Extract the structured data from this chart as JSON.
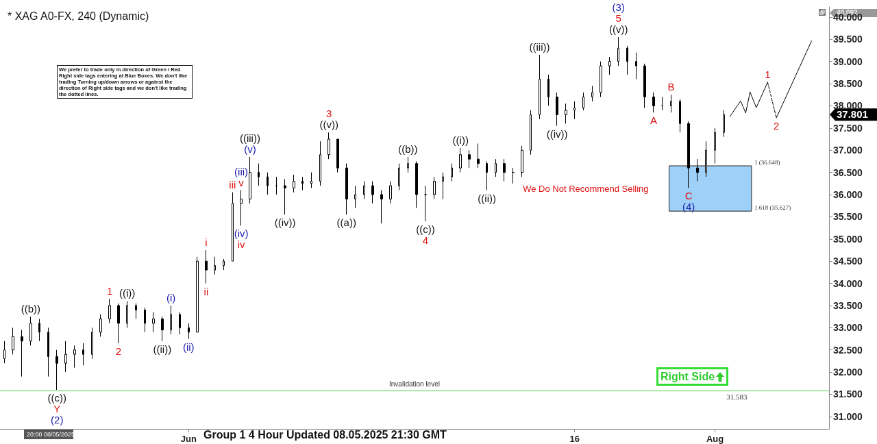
{
  "chart_data": {
    "type": "candlestick",
    "title": "* XAG A0-FX, 240 (Dynamic)",
    "color": "#000000",
    "x": [
      "2025-05-12",
      "2025-05-13",
      "2025-05-14",
      "2025-05-15",
      "2025-05-16",
      "2025-05-17",
      "2025-05-18",
      "2025-05-19",
      "2025-05-20",
      "2025-05-21",
      "2025-05-22",
      "2025-05-23",
      "2025-05-24",
      "2025-05-25",
      "2025-05-26",
      "2025-05-27",
      "2025-05-28",
      "2025-05-29",
      "2025-05-30",
      "2025-05-31",
      "2025-06-01",
      "2025-06-02",
      "2025-06-03",
      "2025-06-04",
      "2025-06-05",
      "2025-06-06",
      "2025-06-07",
      "2025-06-08",
      "2025-06-09",
      "2025-06-10",
      "2025-06-11",
      "2025-06-12",
      "2025-06-13",
      "2025-06-14",
      "2025-06-15",
      "2025-06-16",
      "2025-06-17",
      "2025-06-18",
      "2025-06-19",
      "2025-06-20",
      "2025-06-21",
      "2025-06-22",
      "2025-06-23",
      "2025-06-24",
      "2025-06-25",
      "2025-06-26",
      "2025-06-27",
      "2025-06-28",
      "2025-06-29",
      "2025-06-30",
      "2025-07-01",
      "2025-07-02",
      "2025-07-03",
      "2025-07-04",
      "2025-07-05",
      "2025-07-06",
      "2025-07-07",
      "2025-07-08",
      "2025-07-09",
      "2025-07-10",
      "2025-07-11",
      "2025-07-12",
      "2025-07-13",
      "2025-07-14",
      "2025-07-15",
      "2025-07-16",
      "2025-07-17",
      "2025-07-18",
      "2025-07-19",
      "2025-07-20",
      "2025-07-21",
      "2025-07-22",
      "2025-07-23",
      "2025-07-24",
      "2025-07-25",
      "2025-07-26",
      "2025-07-27",
      "2025-07-28",
      "2025-07-29",
      "2025-07-30",
      "2025-07-31",
      "2025-08-01",
      "2025-08-02"
    ],
    "ohlc": [
      [
        32.3,
        32.7,
        32.2,
        32.5
      ],
      [
        32.5,
        33.0,
        32.4,
        32.8
      ],
      [
        32.8,
        32.95,
        31.9,
        32.7
      ],
      [
        32.7,
        33.25,
        32.6,
        33.1
      ],
      [
        33.1,
        33.2,
        32.7,
        32.9
      ],
      [
        32.9,
        33.0,
        31.9,
        32.35
      ],
      [
        32.35,
        32.5,
        31.6,
        32.2
      ],
      [
        32.2,
        32.7,
        32.0,
        32.4
      ],
      [
        32.4,
        32.6,
        32.1,
        32.5
      ],
      [
        32.5,
        32.65,
        32.15,
        32.4
      ],
      [
        32.4,
        33.0,
        32.3,
        32.9
      ],
      [
        32.9,
        33.3,
        32.8,
        33.2
      ],
      [
        33.2,
        33.65,
        33.1,
        33.5
      ],
      [
        33.5,
        33.55,
        32.65,
        33.1
      ],
      [
        33.1,
        33.6,
        33.0,
        33.5
      ],
      [
        33.5,
        33.55,
        33.2,
        33.4
      ],
      [
        33.4,
        33.45,
        32.9,
        33.1
      ],
      [
        33.1,
        33.35,
        32.9,
        33.2
      ],
      [
        33.2,
        33.25,
        32.7,
        32.95
      ],
      [
        32.95,
        33.5,
        32.85,
        33.3
      ],
      [
        33.3,
        33.35,
        32.85,
        33.0
      ],
      [
        33.0,
        33.1,
        32.75,
        32.9
      ],
      [
        32.9,
        34.6,
        32.9,
        34.5
      ],
      [
        34.5,
        34.75,
        34.0,
        34.3
      ],
      [
        34.3,
        34.6,
        34.2,
        34.4
      ],
      [
        34.4,
        34.55,
        34.3,
        34.5
      ],
      [
        34.5,
        36.05,
        34.5,
        35.8
      ],
      [
        35.8,
        36.1,
        35.3,
        35.9
      ],
      [
        35.9,
        36.85,
        35.8,
        36.5
      ],
      [
        36.5,
        36.7,
        36.2,
        36.4
      ],
      [
        36.4,
        36.5,
        36.0,
        36.2
      ],
      [
        36.2,
        36.4,
        36.0,
        36.2
      ],
      [
        36.2,
        36.35,
        35.55,
        36.15
      ],
      [
        36.15,
        36.45,
        36.05,
        36.3
      ],
      [
        36.3,
        36.4,
        36.1,
        36.25
      ],
      [
        36.25,
        36.5,
        36.15,
        36.3
      ],
      [
        36.3,
        37.2,
        36.2,
        36.9
      ],
      [
        36.9,
        37.4,
        36.8,
        37.25
      ],
      [
        37.25,
        37.25,
        36.5,
        36.6
      ],
      [
        36.6,
        36.7,
        35.55,
        35.9
      ],
      [
        35.9,
        36.2,
        35.7,
        36.0
      ],
      [
        36.0,
        36.3,
        35.9,
        36.2
      ],
      [
        36.2,
        36.3,
        35.8,
        36.0
      ],
      [
        36.0,
        36.1,
        35.35,
        35.9
      ],
      [
        35.9,
        36.3,
        35.8,
        36.2
      ],
      [
        36.2,
        36.7,
        36.1,
        36.6
      ],
      [
        36.6,
        36.85,
        36.5,
        36.7
      ],
      [
        36.7,
        36.75,
        35.7,
        36.0
      ],
      [
        36.0,
        36.2,
        35.4,
        36.0
      ],
      [
        36.0,
        36.4,
        35.9,
        36.3
      ],
      [
        36.3,
        36.5,
        35.9,
        36.4
      ],
      [
        36.4,
        36.7,
        36.3,
        36.6
      ],
      [
        36.6,
        37.05,
        36.5,
        36.9
      ],
      [
        36.9,
        37.0,
        36.6,
        36.8
      ],
      [
        36.8,
        37.15,
        36.6,
        36.7
      ],
      [
        36.7,
        36.75,
        36.1,
        36.5
      ],
      [
        36.5,
        36.8,
        36.4,
        36.7
      ],
      [
        36.7,
        36.8,
        36.3,
        36.5
      ],
      [
        36.5,
        36.6,
        36.25,
        36.5
      ],
      [
        36.5,
        37.1,
        36.4,
        37.0
      ],
      [
        37.0,
        37.9,
        36.9,
        37.8
      ],
      [
        37.8,
        39.15,
        37.7,
        38.6
      ],
      [
        38.6,
        38.7,
        38.0,
        38.2
      ],
      [
        38.2,
        38.3,
        37.55,
        37.8
      ],
      [
        37.8,
        38.05,
        37.6,
        37.9
      ],
      [
        37.9,
        38.1,
        37.7,
        37.95
      ],
      [
        37.95,
        38.3,
        37.9,
        38.2
      ],
      [
        38.2,
        38.45,
        38.1,
        38.3
      ],
      [
        38.3,
        39.0,
        38.2,
        38.9
      ],
      [
        38.9,
        39.1,
        38.7,
        39.0
      ],
      [
        39.0,
        39.55,
        38.9,
        39.3
      ],
      [
        39.3,
        39.35,
        38.7,
        39.0
      ],
      [
        39.0,
        39.2,
        38.6,
        38.9
      ],
      [
        38.9,
        38.95,
        37.95,
        38.2
      ],
      [
        38.2,
        38.3,
        37.85,
        38.0
      ],
      [
        38.0,
        38.2,
        37.9,
        38.0
      ],
      [
        38.0,
        38.25,
        37.85,
        38.1
      ],
      [
        38.1,
        38.15,
        37.4,
        37.6
      ],
      [
        37.6,
        37.65,
        36.15,
        36.6
      ],
      [
        36.6,
        36.8,
        36.3,
        36.5
      ],
      [
        36.5,
        37.2,
        36.4,
        37.0
      ],
      [
        37.0,
        37.5,
        36.7,
        37.4
      ],
      [
        37.4,
        37.9,
        37.3,
        37.8
      ]
    ],
    "series": [
      {
        "type": "line",
        "color": "#000000",
        "line_style": "solid",
        "x": [
          "2025-08-02T17:00",
          "2025-08-03T22:00",
          "2025-08-04T12:00",
          "2025-08-05",
          "2025-08-05T17:00",
          "2025-08-07"
        ],
        "values": [
          37.76,
          38.11,
          37.84,
          38.31,
          37.96,
          38.53
        ]
      },
      {
        "type": "line",
        "color": "#000000",
        "line_style": "dashed",
        "x": [
          "2025-08-07",
          "2025-08-08"
        ],
        "values": [
          38.53,
          37.73
        ]
      },
      {
        "type": "line",
        "color": "#000000",
        "line_style": "solid",
        "x": [
          "2025-08-08",
          "2025-08-12"
        ],
        "values": [
          37.73,
          39.46
        ]
      }
    ],
    "marker": "none",
    "xlim": [
      "2025-05-11T12:00",
      "2025-08-14"
    ],
    "xticks": [
      {
        "value": "2025-06-02",
        "label": "Jun"
      },
      {
        "value": "2025-07-16",
        "label": "16"
      },
      {
        "value": "2025-08-01",
        "label": "Aug"
      }
    ],
    "ylim": [
      30.72,
      40.23
    ],
    "yticks": [
      {
        "value": 31,
        "label": "31.000"
      },
      {
        "value": 31.5,
        "label": "31.500"
      },
      {
        "value": 32,
        "label": "32.000"
      },
      {
        "value": 32.5,
        "label": "32.500"
      },
      {
        "value": 33,
        "label": "33.000"
      },
      {
        "value": 33.5,
        "label": "33.500"
      },
      {
        "value": 34,
        "label": "34.000"
      },
      {
        "value": 34.5,
        "label": "34.500"
      },
      {
        "value": 35,
        "label": "35.000"
      },
      {
        "value": 35.5,
        "label": "35.500"
      },
      {
        "value": 36,
        "label": "36.000"
      },
      {
        "value": 36.5,
        "label": "36.500"
      },
      {
        "value": 37,
        "label": "37.000"
      },
      {
        "value": 37.5,
        "label": "37.500"
      },
      {
        "value": 38,
        "label": "38.000"
      },
      {
        "value": 38.5,
        "label": "38.500"
      },
      {
        "value": 39,
        "label": "39.000"
      },
      {
        "value": 39.5,
        "label": "39.500"
      },
      {
        "value": 40,
        "label": "40.000"
      }
    ],
    "grid": false,
    "ref_lines": [
      {
        "axis": "y",
        "value": 31.583,
        "label": "Invalidation level",
        "color": "#44cc44",
        "line_style": "solid"
      }
    ],
    "bands": [
      {
        "axis": "y",
        "from": 35.627,
        "to": 36.648,
        "color": "#9fd0f7"
      }
    ],
    "annotations": [
      "Group 1 4 Hour Updated 08.05.2025 21:30 GMT",
      "20:00 08/05/2025",
      "We prefer to trade only in direction of Green / Red Right side tags entering at Blue Boxes. We don't like trading Turning up/down arrows or against the direction of Right side tags and we don't like trading the dotted lines.",
      "We Do Not Recommend Selling",
      "Right Side",
      "40.092",
      "37.801",
      {
        "text": "1 (36.648)",
        "x": "2025-08-05T04:00",
        "y": 36.648
      },
      {
        "text": "1.618 (35.627)",
        "x": "2025-08-05T04:00",
        "y": 35.627
      },
      {
        "text": "31.583",
        "x": "2025-08-02",
        "y": 31.583
      },
      {
        "text": "((b))",
        "x": "2025-05-15",
        "y": 33.25
      },
      {
        "text": "((c))",
        "x": "2025-05-18",
        "y": 31.6
      },
      {
        "text": "Y",
        "x": "2025-05-18",
        "y": 31.6
      },
      {
        "text": "(2)",
        "x": "2025-05-18",
        "y": 31.6
      },
      {
        "text": "1",
        "x": "2025-05-24",
        "y": 33.65
      },
      {
        "text": "2",
        "x": "2025-05-25",
        "y": 32.65
      },
      {
        "text": "((i))",
        "x": "2025-05-26",
        "y": 33.6
      },
      {
        "text": "((ii))",
        "x": "2025-05-30",
        "y": 32.7
      },
      {
        "text": "(i)",
        "x": "2025-05-31",
        "y": 33.5
      },
      {
        "text": "(ii)",
        "x": "2025-06-02",
        "y": 32.75
      },
      {
        "text": "i",
        "x": "2025-06-04",
        "y": 34.75
      },
      {
        "text": "ii",
        "x": "2025-06-04",
        "y": 34.0
      },
      {
        "text": "iii",
        "x": "2025-06-07",
        "y": 36.05
      },
      {
        "text": "(iv)",
        "x": "2025-06-08",
        "y": 35.3
      },
      {
        "text": "iv",
        "x": "2025-06-08",
        "y": 35.3
      },
      {
        "text": "v",
        "x": "2025-06-08",
        "y": 36.1
      },
      {
        "text": "(iii)",
        "x": "2025-06-08",
        "y": 36.1
      },
      {
        "text": "(v)",
        "x": "2025-06-09",
        "y": 36.85
      },
      {
        "text": "((iii))",
        "x": "2025-06-09",
        "y": 36.85
      },
      {
        "text": "((iv))",
        "x": "2025-06-13",
        "y": 35.55
      },
      {
        "text": "((v))",
        "x": "2025-06-18",
        "y": 37.4
      },
      {
        "text": "3",
        "x": "2025-06-18",
        "y": 37.4
      },
      {
        "text": "((a))",
        "x": "2025-06-20",
        "y": 35.55
      },
      {
        "text": "((b))",
        "x": "2025-06-27",
        "y": 36.85
      },
      {
        "text": "((c))",
        "x": "2025-06-29",
        "y": 35.4
      },
      {
        "text": "4",
        "x": "2025-06-29",
        "y": 35.4
      },
      {
        "text": "((i))",
        "x": "2025-07-03",
        "y": 37.05
      },
      {
        "text": "((ii))",
        "x": "2025-07-06",
        "y": 36.1
      },
      {
        "text": "((iii))",
        "x": "2025-07-12",
        "y": 39.15
      },
      {
        "text": "((iv))",
        "x": "2025-07-14",
        "y": 37.55
      },
      {
        "text": "((v))",
        "x": "2025-07-21",
        "y": 39.55
      },
      {
        "text": "5",
        "x": "2025-07-21",
        "y": 39.55
      },
      {
        "text": "(3)",
        "x": "2025-07-21",
        "y": 39.55
      },
      {
        "text": "A",
        "x": "2025-07-25",
        "y": 37.85
      },
      {
        "text": "B",
        "x": "2025-07-27",
        "y": 38.25
      },
      {
        "text": "C",
        "x": "2025-07-29",
        "y": 36.15
      },
      {
        "text": "(4)",
        "x": "2025-07-29",
        "y": 36.15
      },
      {
        "text": "1",
        "x": "2025-08-07",
        "y": 38.53
      },
      {
        "text": "2",
        "x": "2025-08-08",
        "y": 37.73
      }
    ]
  }
}
